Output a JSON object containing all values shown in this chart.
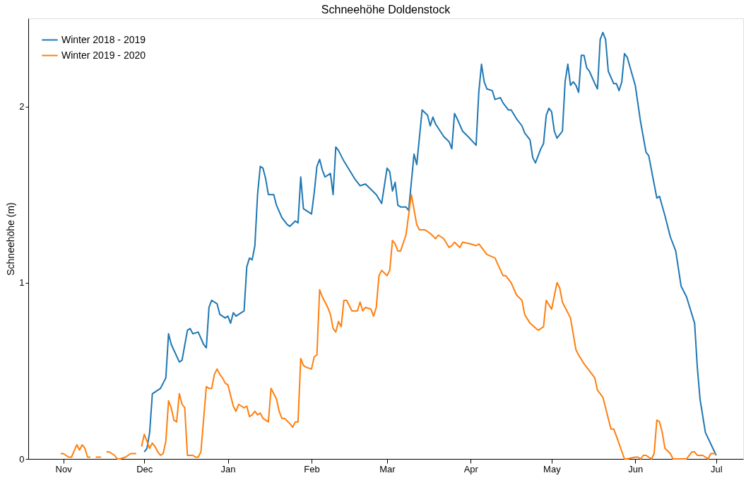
{
  "chart_data": {
    "type": "line",
    "title": "Schneehöhe Doldenstock",
    "ylabel": "Schneehöhe (m)",
    "legend": "top left",
    "grid": false,
    "line_style": "solid",
    "marker": "none",
    "xlim": [
      "2018-10-19",
      "2019-07-11"
    ],
    "xticks": [
      {
        "value": "2018-11-01",
        "label": "Nov"
      },
      {
        "value": "2018-12-01",
        "label": "Dec"
      },
      {
        "value": "2019-01-01",
        "label": "Jan"
      },
      {
        "value": "2019-02-01",
        "label": "Feb"
      },
      {
        "value": "2019-03-01",
        "label": "Mar"
      },
      {
        "value": "2019-04-01",
        "label": "Apr"
      },
      {
        "value": "2019-05-01",
        "label": "May"
      },
      {
        "value": "2019-06-01",
        "label": "Jun"
      },
      {
        "value": "2019-07-01",
        "label": "Jul"
      }
    ],
    "ylim": [
      0,
      2.5
    ],
    "yticks": [
      0,
      1,
      2
    ],
    "series": [
      {
        "name": "Winter 2018 - 2019",
        "color": "#1f77b4",
        "x": [
          "2018-12-01",
          "2018-12-02",
          "2018-12-03",
          "2018-12-04",
          "2018-12-06",
          "2018-12-07",
          "2018-12-09",
          "2018-12-10",
          "2018-12-11",
          "2018-12-14",
          "2018-12-15",
          "2018-12-17",
          "2018-12-18",
          "2018-12-19",
          "2018-12-21",
          "2018-12-23",
          "2018-12-24",
          "2018-12-25",
          "2018-12-26",
          "2018-12-28",
          "2018-12-29",
          "2018-12-31",
          "2019-01-01",
          "2019-01-02",
          "2019-01-03",
          "2019-01-04",
          "2019-01-06",
          "2019-01-07",
          "2019-01-08",
          "2019-01-09",
          "2019-01-10",
          "2019-01-11",
          "2019-01-12",
          "2019-01-13",
          "2019-01-14",
          "2019-01-15",
          "2019-01-16",
          "2019-01-18",
          "2019-01-19",
          "2019-01-21",
          "2019-01-23",
          "2019-01-24",
          "2019-01-26",
          "2019-01-27",
          "2019-01-28",
          "2019-01-29",
          "2019-01-30",
          "2019-02-01",
          "2019-02-02",
          "2019-02-03",
          "2019-02-04",
          "2019-02-05",
          "2019-02-06",
          "2019-02-08",
          "2019-02-09",
          "2019-02-10",
          "2019-02-11",
          "2019-02-13",
          "2019-02-15",
          "2019-02-17",
          "2019-02-19",
          "2019-02-21",
          "2019-02-23",
          "2019-02-25",
          "2019-02-27",
          "2019-03-01",
          "2019-03-02",
          "2019-03-03",
          "2019-03-04",
          "2019-03-05",
          "2019-03-06",
          "2019-03-08",
          "2019-03-09",
          "2019-03-11",
          "2019-03-12",
          "2019-03-14",
          "2019-03-16",
          "2019-03-17",
          "2019-03-18",
          "2019-03-19",
          "2019-03-22",
          "2019-03-24",
          "2019-03-25",
          "2019-03-26",
          "2019-03-27",
          "2019-03-29",
          "2019-03-31",
          "2019-04-03",
          "2019-04-04",
          "2019-04-05",
          "2019-04-06",
          "2019-04-07",
          "2019-04-09",
          "2019-04-10",
          "2019-04-12",
          "2019-04-13",
          "2019-04-15",
          "2019-04-16",
          "2019-04-18",
          "2019-04-20",
          "2019-04-21",
          "2019-04-23",
          "2019-04-24",
          "2019-04-25",
          "2019-04-27",
          "2019-04-28",
          "2019-04-29",
          "2019-04-30",
          "2019-05-01",
          "2019-05-02",
          "2019-05-03",
          "2019-05-04",
          "2019-05-05",
          "2019-05-06",
          "2019-05-07",
          "2019-05-08",
          "2019-05-09",
          "2019-05-10",
          "2019-05-11",
          "2019-05-12",
          "2019-05-13",
          "2019-05-14",
          "2019-05-15",
          "2019-05-17",
          "2019-05-18",
          "2019-05-19",
          "2019-05-20",
          "2019-05-21",
          "2019-05-22",
          "2019-05-24",
          "2019-05-25",
          "2019-05-26",
          "2019-05-27",
          "2019-05-28",
          "2019-05-29",
          "2019-06-01",
          "2019-06-03",
          "2019-06-05",
          "2019-06-06",
          "2019-06-08",
          "2019-06-09",
          "2019-06-10",
          "2019-06-12",
          "2019-06-14",
          "2019-06-16",
          "2019-06-18",
          "2019-06-20",
          "2019-06-21",
          "2019-06-23",
          "2019-06-24",
          "2019-06-25",
          "2019-06-27",
          "2019-07-01"
        ],
        "values": [
          0.04,
          0.06,
          0.15,
          0.37,
          0.39,
          0.4,
          0.46,
          0.71,
          0.65,
          0.55,
          0.56,
          0.73,
          0.74,
          0.71,
          0.72,
          0.65,
          0.63,
          0.86,
          0.9,
          0.88,
          0.82,
          0.8,
          0.81,
          0.77,
          0.83,
          0.81,
          0.83,
          0.84,
          1.09,
          1.14,
          1.13,
          1.21,
          1.5,
          1.66,
          1.65,
          1.59,
          1.5,
          1.5,
          1.44,
          1.37,
          1.33,
          1.32,
          1.35,
          1.34,
          1.6,
          1.42,
          1.41,
          1.39,
          1.51,
          1.66,
          1.7,
          1.64,
          1.6,
          1.62,
          1.5,
          1.77,
          1.75,
          1.69,
          1.64,
          1.59,
          1.55,
          1.56,
          1.53,
          1.5,
          1.45,
          1.65,
          1.63,
          1.52,
          1.57,
          1.44,
          1.43,
          1.43,
          1.41,
          1.73,
          1.67,
          1.98,
          1.95,
          1.89,
          1.94,
          1.9,
          1.83,
          1.8,
          1.76,
          1.96,
          1.93,
          1.86,
          1.83,
          1.78,
          2.08,
          2.24,
          2.14,
          2.1,
          2.09,
          2.04,
          2.05,
          2.02,
          1.98,
          1.98,
          1.93,
          1.89,
          1.85,
          1.81,
          1.71,
          1.68,
          1.76,
          1.79,
          1.95,
          1.99,
          1.97,
          1.86,
          1.82,
          1.84,
          1.86,
          2.14,
          2.24,
          2.12,
          2.14,
          2.12,
          2.08,
          2.29,
          2.29,
          2.22,
          2.2,
          2.13,
          2.1,
          2.38,
          2.42,
          2.38,
          2.2,
          2.13,
          2.13,
          2.09,
          2.14,
          2.3,
          2.28,
          2.12,
          1.91,
          1.74,
          1.72,
          1.56,
          1.48,
          1.49,
          1.38,
          1.26,
          1.18,
          0.98,
          0.92,
          0.87,
          0.77,
          0.52,
          0.34,
          0.15,
          0.02
        ]
      },
      {
        "name": "Winter 2019 - 2020",
        "color": "#ff7f0e",
        "x": [
          "2018-10-31",
          "2018-11-01",
          "2018-11-03",
          "2018-11-04",
          "2018-11-06",
          "2018-11-07",
          "2018-11-08",
          "2018-11-09",
          "2018-11-10",
          "2018-11-11",
          "2018-11-12",
          "2018-11-13",
          "2018-11-15",
          "2018-11-16",
          "2018-11-17",
          "2018-11-18",
          "2018-11-20",
          "2018-11-21",
          "2018-11-22",
          "2018-11-24",
          "2018-11-25",
          "2018-11-26",
          "2018-11-28",
          "2018-11-29",
          "2018-11-30",
          "2018-12-01",
          "2018-12-02",
          "2018-12-03",
          "2018-12-04",
          "2018-12-05",
          "2018-12-06",
          "2018-12-07",
          "2018-12-08",
          "2018-12-09",
          "2018-12-10",
          "2018-12-11",
          "2018-12-12",
          "2018-12-13",
          "2018-12-14",
          "2018-12-15",
          "2018-12-16",
          "2018-12-17",
          "2018-12-19",
          "2018-12-20",
          "2018-12-21",
          "2018-12-22",
          "2018-12-24",
          "2018-12-25",
          "2018-12-26",
          "2018-12-27",
          "2018-12-28",
          "2018-12-29",
          "2018-12-30",
          "2018-12-31",
          "2019-01-01",
          "2019-01-03",
          "2019-01-04",
          "2019-01-05",
          "2019-01-07",
          "2019-01-08",
          "2019-01-09",
          "2019-01-10",
          "2019-01-11",
          "2019-01-12",
          "2019-01-13",
          "2019-01-14",
          "2019-01-16",
          "2019-01-17",
          "2019-01-19",
          "2019-01-20",
          "2019-01-21",
          "2019-01-22",
          "2019-01-24",
          "2019-01-25",
          "2019-01-26",
          "2019-01-27",
          "2019-01-28",
          "2019-01-29",
          "2019-01-30",
          "2019-02-01",
          "2019-02-02",
          "2019-02-03",
          "2019-02-04",
          "2019-02-05",
          "2019-02-07",
          "2019-02-08",
          "2019-02-09",
          "2019-02-10",
          "2019-02-11",
          "2019-02-12",
          "2019-02-13",
          "2019-02-14",
          "2019-02-16",
          "2019-02-18",
          "2019-02-19",
          "2019-02-20",
          "2019-02-21",
          "2019-02-23",
          "2019-02-24",
          "2019-02-25",
          "2019-02-26",
          "2019-02-27",
          "2019-03-01",
          "2019-03-02",
          "2019-03-03",
          "2019-03-04",
          "2019-03-05",
          "2019-03-06",
          "2019-03-08",
          "2019-03-10",
          "2019-03-12",
          "2019-03-13",
          "2019-03-15",
          "2019-03-17",
          "2019-03-19",
          "2019-03-20",
          "2019-03-22",
          "2019-03-24",
          "2019-03-25",
          "2019-03-26",
          "2019-03-28",
          "2019-03-29",
          "2019-04-01",
          "2019-04-03",
          "2019-04-04",
          "2019-04-05",
          "2019-04-07",
          "2019-04-10",
          "2019-04-13",
          "2019-04-14",
          "2019-04-16",
          "2019-04-18",
          "2019-04-20",
          "2019-04-21",
          "2019-04-23",
          "2019-04-26",
          "2019-04-28",
          "2019-04-29",
          "2019-05-01",
          "2019-05-03",
          "2019-05-04",
          "2019-05-05",
          "2019-05-06",
          "2019-05-08",
          "2019-05-10",
          "2019-05-11",
          "2019-05-13",
          "2019-05-17",
          "2019-05-18",
          "2019-05-20",
          "2019-05-23",
          "2019-05-24",
          "2019-05-25",
          "2019-05-28",
          "2019-05-29",
          "2019-06-01",
          "2019-06-02",
          "2019-06-03",
          "2019-06-04",
          "2019-06-05",
          "2019-06-07",
          "2019-06-08",
          "2019-06-09",
          "2019-06-10",
          "2019-06-11",
          "2019-06-12",
          "2019-06-14",
          "2019-06-15",
          "2019-06-18",
          "2019-06-20",
          "2019-06-22",
          "2019-06-23",
          "2019-06-24",
          "2019-06-26",
          "2019-06-28",
          "2019-06-29",
          "2019-07-01"
        ],
        "values": [
          0.03,
          0.03,
          0.01,
          0.01,
          0.08,
          0.05,
          0.08,
          0.06,
          0.01,
          0.01,
          null,
          0.01,
          0.01,
          null,
          0.04,
          0.04,
          0.02,
          0.0,
          0.0,
          0.01,
          0.02,
          0.03,
          0.03,
          null,
          0.07,
          0.14,
          0.1,
          0.06,
          0.09,
          0.07,
          0.04,
          0.02,
          0.03,
          0.1,
          0.33,
          0.29,
          0.22,
          0.21,
          0.37,
          0.31,
          0.29,
          0.02,
          0.02,
          0.01,
          0.01,
          0.04,
          0.41,
          0.4,
          0.4,
          0.48,
          0.51,
          0.48,
          0.46,
          0.43,
          0.42,
          0.3,
          0.27,
          0.31,
          0.29,
          0.3,
          0.24,
          0.25,
          0.27,
          0.25,
          0.26,
          0.23,
          0.21,
          0.4,
          0.34,
          0.27,
          0.23,
          0.23,
          0.2,
          0.18,
          0.21,
          0.21,
          0.57,
          0.53,
          0.52,
          0.51,
          0.58,
          0.59,
          0.96,
          0.92,
          0.86,
          0.82,
          0.74,
          0.72,
          0.78,
          0.75,
          0.9,
          0.9,
          0.84,
          0.84,
          0.89,
          0.84,
          0.86,
          0.85,
          0.81,
          0.86,
          1.04,
          1.07,
          1.04,
          1.07,
          1.24,
          1.22,
          1.18,
          1.18,
          1.27,
          1.5,
          1.33,
          1.3,
          1.3,
          1.28,
          1.25,
          1.27,
          1.25,
          1.2,
          1.21,
          1.23,
          1.2,
          1.23,
          1.22,
          1.21,
          1.22,
          1.2,
          1.16,
          1.14,
          1.04,
          1.04,
          1.0,
          0.93,
          0.9,
          0.82,
          0.77,
          0.73,
          0.75,
          0.9,
          0.85,
          1.0,
          0.97,
          0.89,
          0.86,
          0.8,
          0.62,
          0.59,
          0.54,
          0.46,
          0.39,
          0.35,
          0.17,
          0.17,
          0.13,
          0.0,
          0.0,
          0.01,
          0.01,
          0.0,
          0.02,
          0.02,
          0.0,
          0.03,
          0.22,
          0.21,
          0.15,
          0.06,
          0.03,
          0.0,
          0.0,
          0.0,
          0.04,
          0.04,
          0.02,
          0.02,
          0.0,
          0.03,
          0.03
        ]
      }
    ]
  }
}
